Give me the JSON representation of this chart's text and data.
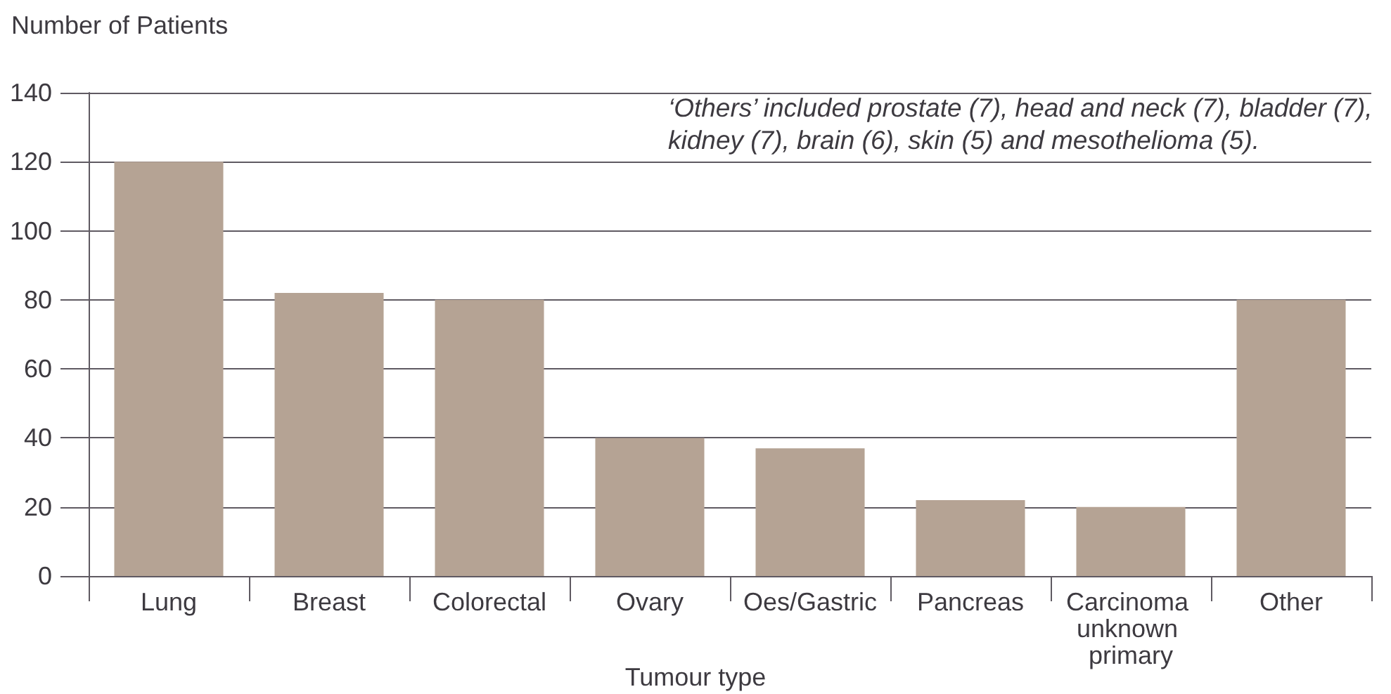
{
  "chart_data": {
    "type": "bar",
    "ylabel": "Number of Patients",
    "xlabel": "Tumour type",
    "categories": [
      "Lung",
      "Breast",
      "Colorectal",
      "Ovary",
      "Oes/Gastric",
      "Pancreas",
      "Carcinoma unknown primary",
      "Other"
    ],
    "values": [
      120,
      82,
      80,
      40,
      37,
      22,
      20,
      80
    ],
    "color": "#b5a394",
    "ylim": [
      0,
      140
    ],
    "yticks": [
      0,
      20,
      40,
      60,
      80,
      100,
      120,
      140
    ],
    "grid": "y",
    "annotations": [
      "‘Others’ included prostate (7), head and neck (7), bladder (7), kidney (7), brain (6), skin (5) and mesothelioma (5)."
    ]
  }
}
